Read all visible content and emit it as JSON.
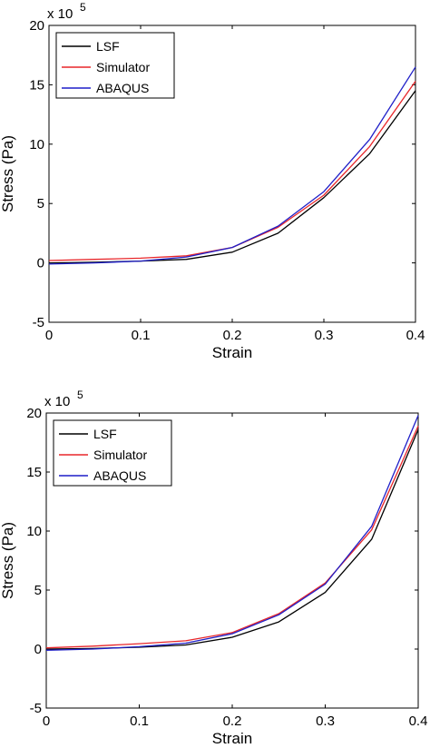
{
  "chart_data": [
    {
      "type": "line",
      "xlabel": "Strain",
      "ylabel": "Stress (Pa)",
      "y_multiplier": "x 10",
      "y_exponent": "5",
      "xlim": [
        0,
        0.4
      ],
      "ylim": [
        -5,
        20
      ],
      "xticks": [
        "0",
        "0.1",
        "0.2",
        "0.3",
        "0.4"
      ],
      "yticks": [
        "-5",
        "0",
        "5",
        "10",
        "15",
        "20"
      ],
      "legend_position": "top-left",
      "grid": false,
      "series": [
        {
          "name": "LSF",
          "color": "#000000",
          "x": [
            0,
            0.05,
            0.1,
            0.15,
            0.2,
            0.25,
            0.3,
            0.35,
            0.4
          ],
          "y": [
            0,
            0.05,
            0.15,
            0.3,
            0.9,
            2.5,
            5.5,
            9.2,
            14.5
          ]
        },
        {
          "name": "Simulator",
          "color": "#e8262a",
          "x": [
            0,
            0.05,
            0.1,
            0.15,
            0.2,
            0.25,
            0.3,
            0.35,
            0.4
          ],
          "y": [
            0.2,
            0.3,
            0.4,
            0.6,
            1.3,
            3.0,
            5.7,
            9.8,
            15.3
          ]
        },
        {
          "name": "ABAQUS",
          "color": "#1f1fc8",
          "x": [
            0,
            0.05,
            0.1,
            0.15,
            0.2,
            0.25,
            0.3,
            0.35,
            0.4
          ],
          "y": [
            -0.1,
            0.0,
            0.15,
            0.5,
            1.3,
            3.1,
            6.0,
            10.4,
            16.5
          ]
        }
      ]
    },
    {
      "type": "line",
      "xlabel": "Strain",
      "ylabel": "Stress (Pa)",
      "y_multiplier": "x 10",
      "y_exponent": "5",
      "xlim": [
        0,
        0.4
      ],
      "ylim": [
        -5,
        20
      ],
      "xticks": [
        "0",
        "0.1",
        "0.2",
        "0.3",
        "0.4"
      ],
      "yticks": [
        "-5",
        "0",
        "5",
        "10",
        "15",
        "20"
      ],
      "legend_position": "top-left",
      "grid": false,
      "series": [
        {
          "name": "LSF",
          "color": "#000000",
          "x": [
            0,
            0.05,
            0.1,
            0.15,
            0.2,
            0.25,
            0.3,
            0.35,
            0.4
          ],
          "y": [
            0,
            0.05,
            0.15,
            0.35,
            1.0,
            2.3,
            4.8,
            9.3,
            18.6
          ]
        },
        {
          "name": "Simulator",
          "color": "#e8262a",
          "x": [
            0,
            0.05,
            0.1,
            0.15,
            0.2,
            0.25,
            0.3,
            0.35,
            0.4
          ],
          "y": [
            0.1,
            0.25,
            0.45,
            0.7,
            1.4,
            3.0,
            5.6,
            10.1,
            18.9
          ]
        },
        {
          "name": "ABAQUS",
          "color": "#1f1fc8",
          "x": [
            0,
            0.05,
            0.1,
            0.15,
            0.2,
            0.25,
            0.3,
            0.35,
            0.4
          ],
          "y": [
            -0.1,
            0.0,
            0.2,
            0.5,
            1.3,
            2.9,
            5.5,
            10.4,
            19.8
          ]
        }
      ]
    }
  ]
}
